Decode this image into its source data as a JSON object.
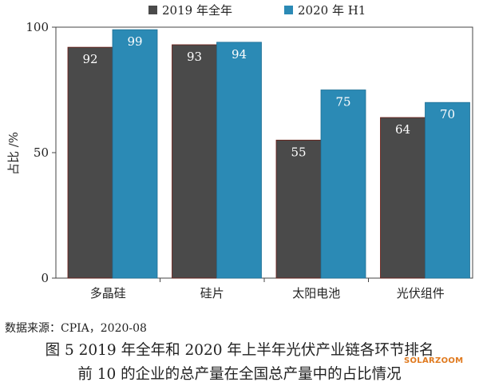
{
  "chart_data": {
    "type": "bar",
    "categories": [
      "多晶硅",
      "硅片",
      "太阳电池",
      "光伏组件"
    ],
    "series": [
      {
        "name": "2019 年全年",
        "values": [
          92,
          93,
          55,
          64
        ],
        "color": "#4a4a4a"
      },
      {
        "name": "2020 年 H1",
        "values": [
          99,
          94,
          75,
          70
        ],
        "color": "#2b8ab5"
      }
    ],
    "ylabel": "占比 /%",
    "ylim": [
      0,
      100
    ],
    "yticks": [
      "0",
      "50",
      "100"
    ],
    "legend_position": "top",
    "grid": false,
    "data_labels": true
  },
  "source_note": "数据来源：CPIA，2020-08",
  "caption": {
    "line1": "图 5  2019 年全年和 2020 年上半年光伏产业链各环节排名",
    "line2": "前 10 的企业的总产量在全国总产量中的占比情况"
  },
  "watermark": "SOLARZOOM"
}
